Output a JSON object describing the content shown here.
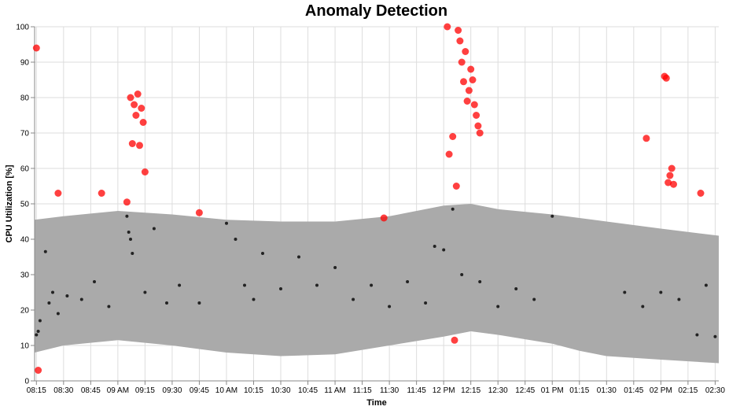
{
  "chart_data": {
    "type": "scatter",
    "title": "Anomaly Detection",
    "xlabel": "Time",
    "ylabel": "CPU Utilization [%]",
    "ylim": [
      0,
      100
    ],
    "yticks": [
      0,
      10,
      20,
      30,
      40,
      50,
      60,
      70,
      80,
      90,
      100
    ],
    "xlim": [
      "08:14",
      "14:32"
    ],
    "xticks": [
      {
        "t": "08:15",
        "label": "08:15"
      },
      {
        "t": "08:30",
        "label": "08:30"
      },
      {
        "t": "08:45",
        "label": "08:45"
      },
      {
        "t": "09:00",
        "label": "09 AM"
      },
      {
        "t": "09:15",
        "label": "09:15"
      },
      {
        "t": "09:30",
        "label": "09:30"
      },
      {
        "t": "09:45",
        "label": "09:45"
      },
      {
        "t": "10:00",
        "label": "10 AM"
      },
      {
        "t": "10:15",
        "label": "10:15"
      },
      {
        "t": "10:30",
        "label": "10:30"
      },
      {
        "t": "10:45",
        "label": "10:45"
      },
      {
        "t": "11:00",
        "label": "11 AM"
      },
      {
        "t": "11:15",
        "label": "11:15"
      },
      {
        "t": "11:30",
        "label": "11:30"
      },
      {
        "t": "11:45",
        "label": "11:45"
      },
      {
        "t": "12:00",
        "label": "12 PM"
      },
      {
        "t": "12:15",
        "label": "12:15"
      },
      {
        "t": "12:30",
        "label": "12:30"
      },
      {
        "t": "12:45",
        "label": "12:45"
      },
      {
        "t": "13:00",
        "label": "01 PM"
      },
      {
        "t": "13:15",
        "label": "01:15"
      },
      {
        "t": "13:30",
        "label": "01:30"
      },
      {
        "t": "13:45",
        "label": "01:45"
      },
      {
        "t": "14:00",
        "label": "02 PM"
      },
      {
        "t": "14:15",
        "label": "02:15"
      },
      {
        "t": "14:30",
        "label": "02:30"
      }
    ],
    "grid": true,
    "colors": {
      "band": "#aaaaaa",
      "normal": "#000000",
      "anomaly": "#ff0000"
    },
    "band": {
      "x": [
        "08:14",
        "08:30",
        "09:00",
        "09:30",
        "10:00",
        "10:30",
        "11:00",
        "11:30",
        "12:00",
        "12:15",
        "12:30",
        "13:00",
        "13:15",
        "13:30",
        "14:00",
        "14:32"
      ],
      "upper": [
        45.5,
        46.5,
        48,
        47,
        45.5,
        45,
        45,
        46.5,
        49.5,
        50,
        48.5,
        47,
        46,
        45,
        43,
        41
      ],
      "lower": [
        8,
        10,
        11.5,
        10,
        8,
        7,
        7.5,
        10,
        12.5,
        14,
        13,
        10.5,
        8.5,
        7,
        6,
        5
      ]
    },
    "series": [
      {
        "kind": "normal",
        "x": [
          "08:15",
          "08:16",
          "08:17",
          "08:20",
          "08:22",
          "08:24",
          "08:27",
          "08:32",
          "08:40",
          "08:47",
          "08:55",
          "09:05",
          "09:06",
          "09:07",
          "09:08",
          "09:15",
          "09:20",
          "09:27",
          "09:34",
          "09:45",
          "10:00",
          "10:05",
          "10:10",
          "10:15",
          "10:20",
          "10:30",
          "10:40",
          "10:50",
          "11:00",
          "11:10",
          "11:20",
          "11:30",
          "11:40",
          "11:50",
          "11:55",
          "12:00",
          "12:05",
          "12:10",
          "12:20",
          "12:30",
          "12:40",
          "12:50",
          "13:00",
          "13:40",
          "13:50",
          "14:00",
          "14:10",
          "14:20",
          "14:25",
          "14:30"
        ],
        "y": [
          13,
          14,
          17,
          36.5,
          22,
          25,
          19,
          24,
          23,
          28,
          21,
          46.5,
          42,
          40,
          36,
          25,
          43,
          22,
          27,
          22,
          44.5,
          40,
          27,
          23,
          36,
          26,
          35,
          27,
          32,
          23,
          27,
          21,
          28,
          22,
          38,
          37,
          48.5,
          30,
          28,
          21,
          26,
          23,
          46.5,
          25,
          21,
          25,
          23,
          13,
          27,
          12.5
        ]
      },
      {
        "kind": "anomaly",
        "x": [
          "08:15",
          "08:16",
          "08:27",
          "08:51",
          "09:05",
          "09:07",
          "09:08",
          "09:09",
          "09:10",
          "09:11",
          "09:12",
          "09:13",
          "09:14",
          "09:15",
          "09:45",
          "11:27",
          "12:02",
          "12:03",
          "12:05",
          "12:06",
          "12:07",
          "12:08",
          "12:09",
          "12:10",
          "12:11",
          "12:12",
          "12:13",
          "12:14",
          "12:15",
          "12:16",
          "12:17",
          "12:18",
          "12:19",
          "12:20",
          "13:52",
          "14:02",
          "14:03",
          "14:04",
          "14:05",
          "14:06",
          "14:07",
          "14:22"
        ],
        "y": [
          94,
          3,
          53,
          53,
          50.5,
          80,
          67,
          78,
          75,
          81,
          66.5,
          77,
          73,
          59,
          47.5,
          46,
          100,
          64,
          69,
          11.5,
          55,
          99,
          96,
          90,
          84.5,
          93,
          79,
          82,
          88,
          85,
          78,
          75,
          72,
          70,
          68.5,
          86,
          85.5,
          56,
          58,
          60,
          55.5,
          53
        ]
      }
    ]
  }
}
